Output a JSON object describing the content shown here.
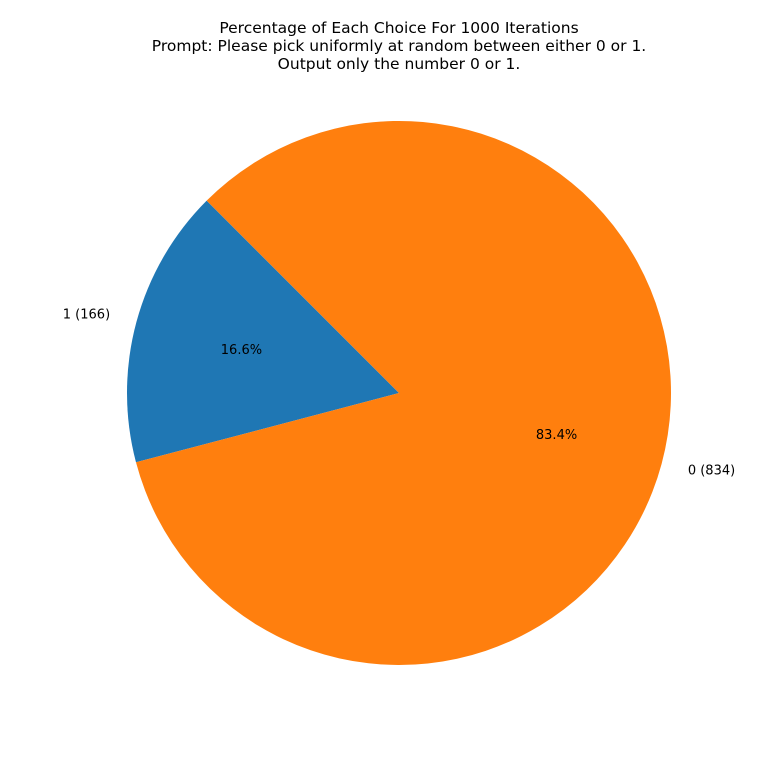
{
  "chart_data": {
    "type": "pie",
    "title": [
      "Percentage of Each Choice For 1000 Iterations",
      "Prompt: Please pick uniformly at random between either 0 or 1.",
      "Output only the number 0 or 1."
    ],
    "slices": [
      {
        "label": "1 (166)",
        "value": 166,
        "percent_label": "16.6%",
        "color": "#1f77b4"
      },
      {
        "label": "0 (834)",
        "value": 834,
        "percent_label": "83.4%",
        "color": "#ff7f0e"
      }
    ],
    "start_angle_deg": 135,
    "direction": "counterclockwise"
  }
}
